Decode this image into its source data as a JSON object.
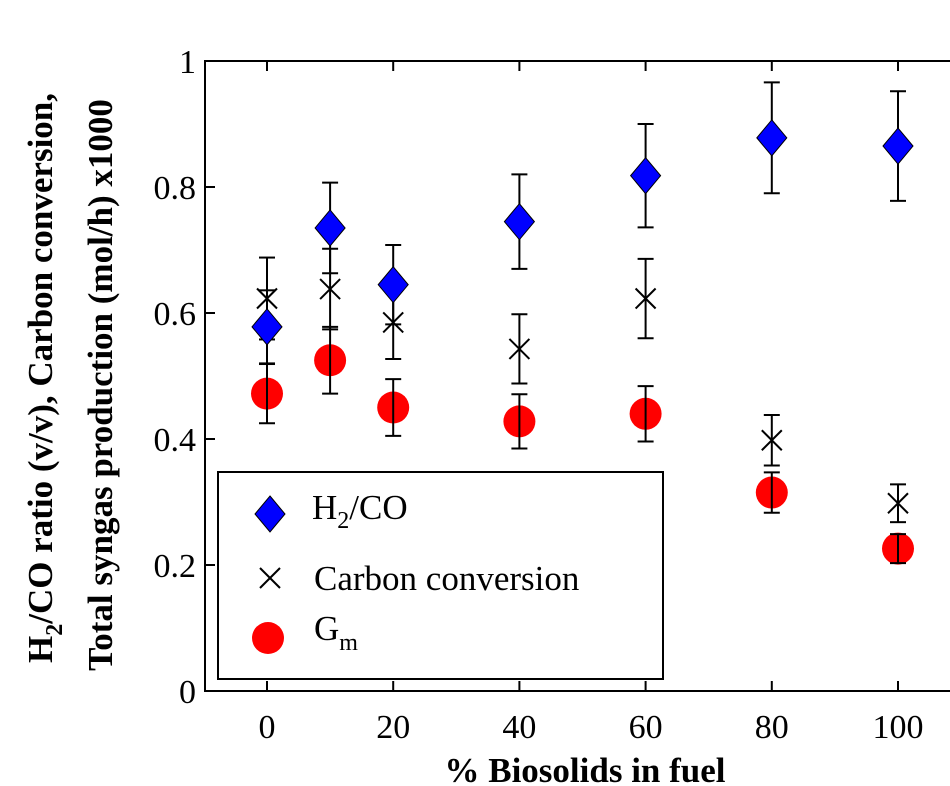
{
  "chart_data": {
    "type": "scatter",
    "xlabel": "% Biosolids in fuel",
    "ylabel_line1": {
      "part1": "H",
      "sub": "2",
      "part2": "/CO ratio (v/v), Carbon conversion,"
    },
    "ylabel_line2": "Total syngas production (mol/h) x1000",
    "xlim": [
      -10,
      105
    ],
    "ylim": [
      0,
      1
    ],
    "xticks": [
      0,
      20,
      40,
      60,
      80,
      100
    ],
    "xtick_labels": [
      "0",
      "20",
      "40",
      "60",
      "80",
      "100"
    ],
    "yticks": [
      0,
      0.2,
      0.4,
      0.6,
      0.8,
      1
    ],
    "ytick_labels": [
      "0",
      "0.2",
      "0.4",
      "0.6",
      "0.8",
      "1"
    ],
    "grid": false,
    "legend_position": "bottom-left",
    "series": [
      {
        "key": "h2co",
        "legend": {
          "main": "H",
          "sub": "2",
          "rest": "/CO"
        },
        "marker": "diamond",
        "color": "#0000ff",
        "x": [
          0,
          10,
          20,
          40,
          60,
          80,
          100
        ],
        "y": [
          0.578,
          0.735,
          0.645,
          0.745,
          0.818,
          0.878,
          0.865
        ],
        "err": [
          0.058,
          0.072,
          0.063,
          0.075,
          0.082,
          0.088,
          0.087
        ]
      },
      {
        "key": "carbon",
        "legend": {
          "main": "Carbon conversion",
          "sub": "",
          "rest": ""
        },
        "marker": "x",
        "color": "#000000",
        "x": [
          0,
          10,
          20,
          40,
          60,
          80,
          100
        ],
        "y": [
          0.623,
          0.638,
          0.585,
          0.543,
          0.623,
          0.398,
          0.298
        ],
        "err": [
          0.065,
          0.064,
          0.058,
          0.055,
          0.063,
          0.04,
          0.03
        ]
      },
      {
        "key": "gm",
        "legend": {
          "main": "G",
          "sub": "m",
          "rest": ""
        },
        "marker": "circle",
        "color": "#ff0000",
        "x": [
          0,
          10,
          20,
          40,
          60,
          80,
          100
        ],
        "y": [
          0.472,
          0.525,
          0.45,
          0.428,
          0.44,
          0.315,
          0.226
        ],
        "err": [
          0.047,
          0.053,
          0.045,
          0.043,
          0.044,
          0.032,
          0.023
        ]
      }
    ]
  }
}
